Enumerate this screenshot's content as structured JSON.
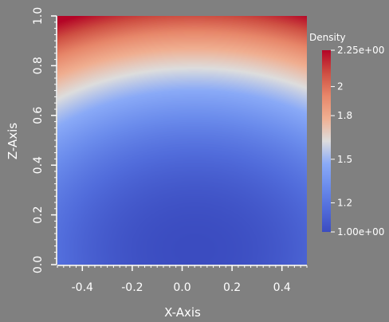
{
  "chart_data": {
    "type": "heatmap",
    "xlabel": "X-Axis",
    "ylabel": "Z-Axis",
    "xlim": [
      -0.5,
      0.5
    ],
    "ylim": [
      0.0,
      1.0
    ],
    "x_ticks": [
      -0.4,
      -0.2,
      0.0,
      0.2,
      0.4
    ],
    "x_tick_labels": [
      "-0.4",
      "-0.2",
      "0.0",
      "0.2",
      "0.4"
    ],
    "y_ticks": [
      0.0,
      0.2,
      0.4,
      0.6,
      0.8,
      1.0
    ],
    "y_tick_labels": [
      "0.0",
      "0.2",
      "0.4",
      "0.6",
      "0.8",
      "1.0"
    ],
    "colorbar": {
      "title": "Density",
      "range": [
        1.0,
        2.25
      ],
      "ticks": [
        1.0,
        1.2,
        1.5,
        1.8,
        2.0,
        2.25
      ],
      "tick_labels": [
        "1.00e+00",
        "1.2",
        "1.5",
        "1.8",
        "2",
        "2.25e+00"
      ],
      "colormap": "cool-to-warm"
    },
    "field": {
      "description_min_location": [
        0.05,
        0.05
      ],
      "max_location": [
        0.0,
        1.0
      ],
      "min_value": 1.0,
      "max_value": 2.25
    },
    "grid": false
  },
  "colors": {
    "background": "#808080",
    "cmap_low": "#3b4cc0",
    "cmap_mid": "#dddddd",
    "cmap_high": "#b40426"
  }
}
